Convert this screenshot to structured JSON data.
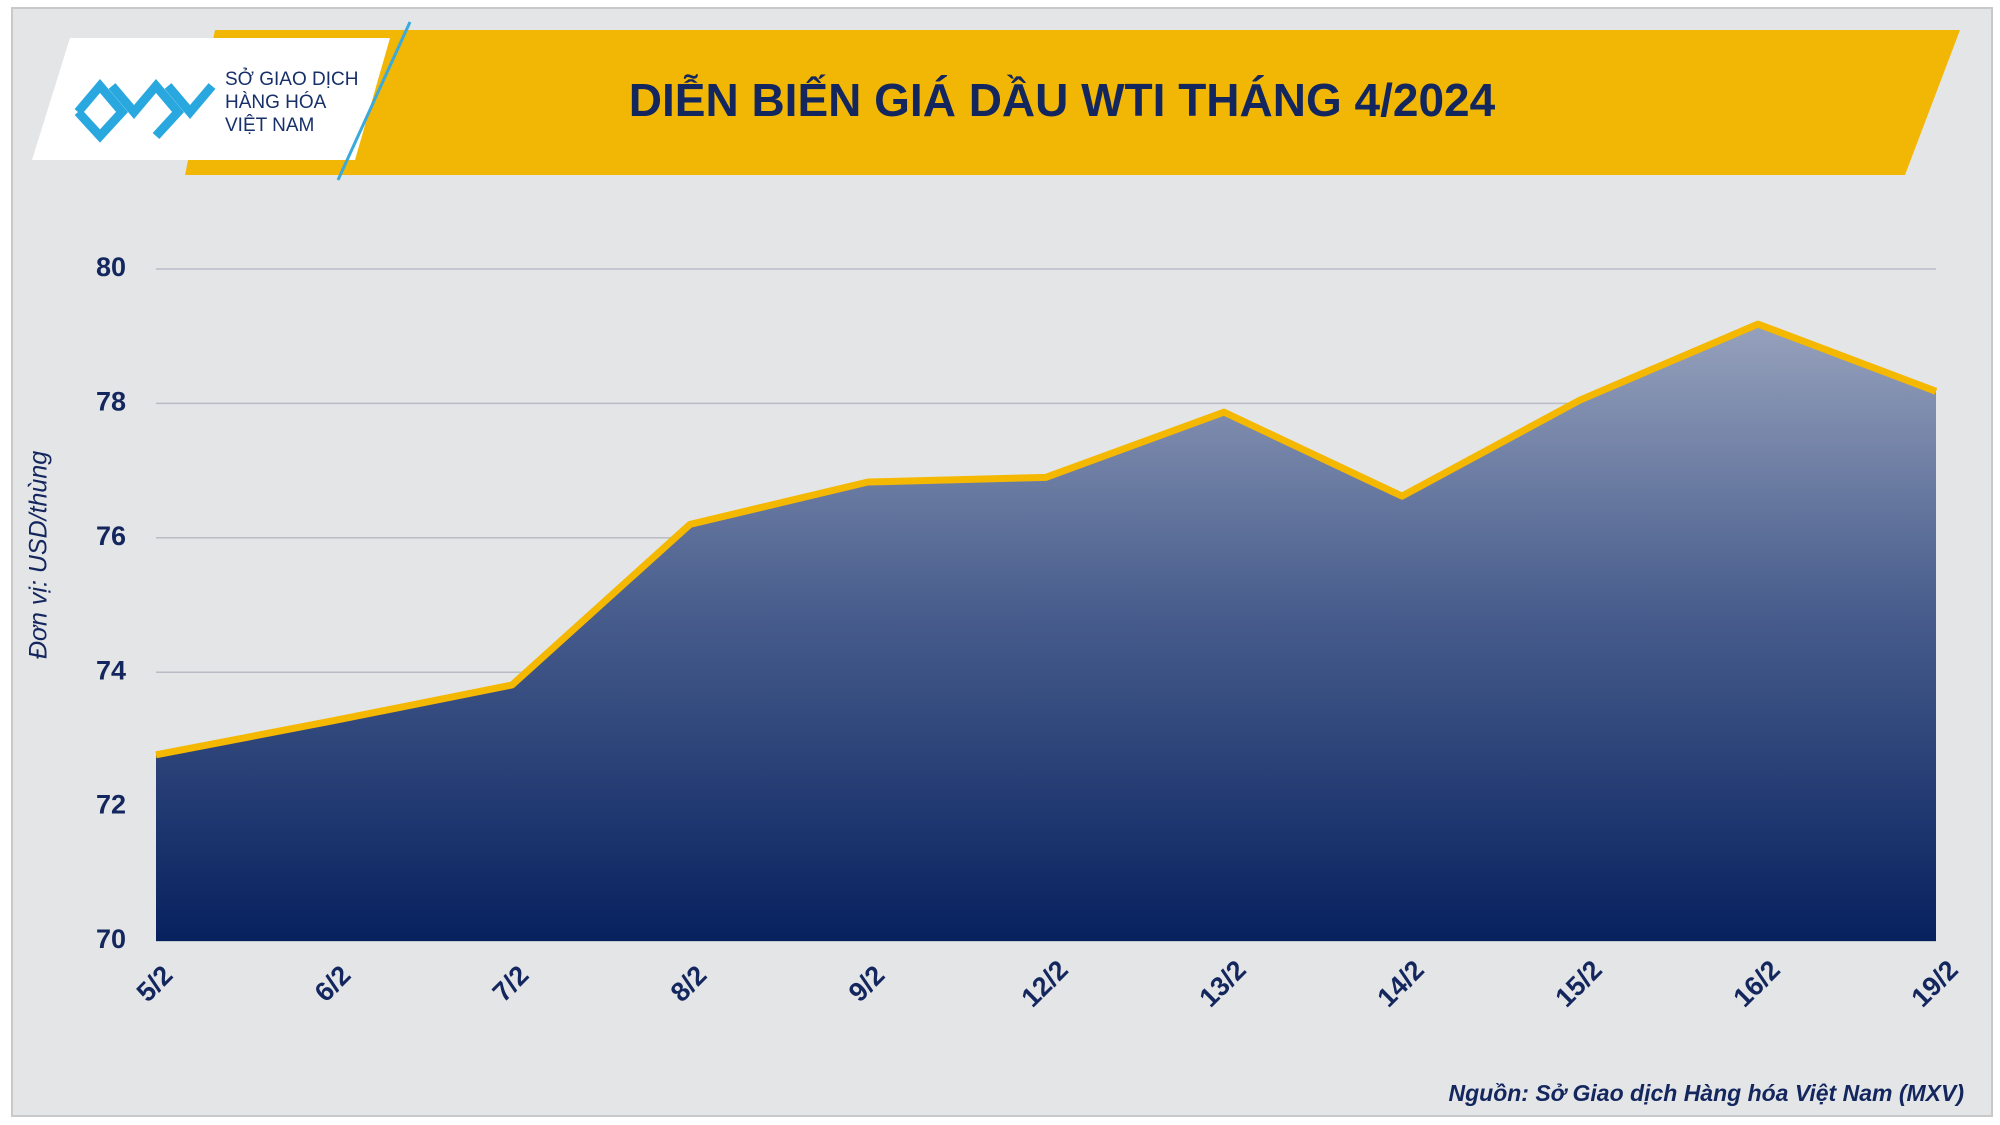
{
  "logo": {
    "lines": [
      "SỞ GIAO DỊCH",
      "HÀNG HÓA",
      "VIỆT NAM"
    ]
  },
  "chart_data": {
    "type": "area",
    "title": "DIỄN BIẾN GIÁ DẦU WTI THÁNG 4/2024",
    "y_label": "Đơn vị: USD/thùng",
    "source": "Nguồn: Sở Giao dịch Hàng hóa Việt Nam (MXV)",
    "categories": [
      "5/2",
      "6/2",
      "7/2",
      "8/2",
      "9/2",
      "12/2",
      "13/2",
      "14/2",
      "15/2",
      "16/2",
      "19/2"
    ],
    "values": [
      72.77,
      73.28,
      73.81,
      76.2,
      76.83,
      76.9,
      77.87,
      76.62,
      78.05,
      79.18,
      78.18
    ],
    "color": "#f5b800",
    "ylim": [
      70,
      80
    ],
    "yticks": [
      70,
      72,
      74,
      76,
      78,
      80
    ],
    "grid": true
  }
}
